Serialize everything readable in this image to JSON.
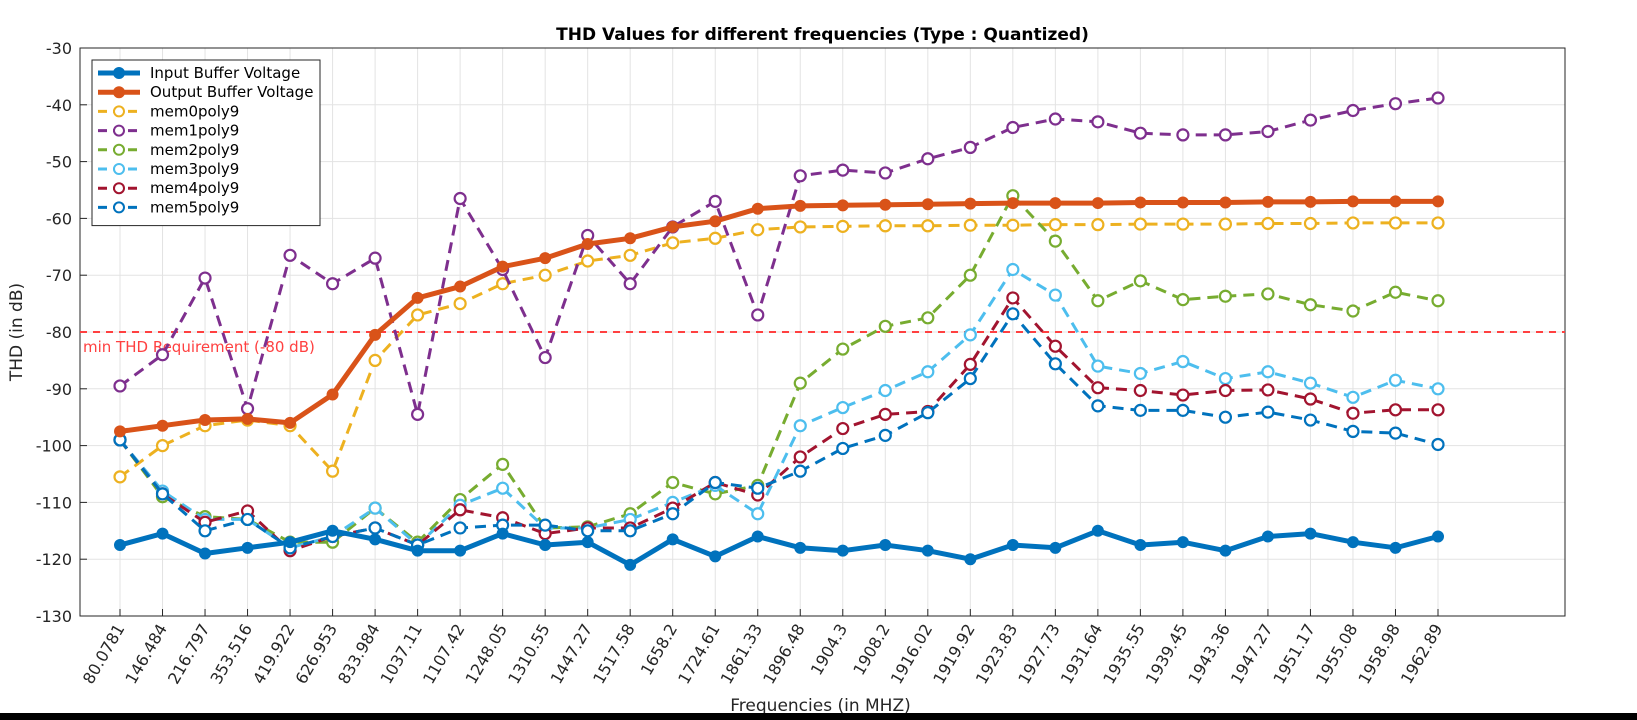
{
  "chart_data": {
    "type": "line",
    "title": "THD Values for different frequencies (Type : Quantized)",
    "xlabel": "Frequencies (in MHZ)",
    "ylabel": "THD (in dB)",
    "ylim": [
      -130,
      -30
    ],
    "yticks": [
      -130,
      -120,
      -110,
      -100,
      -90,
      -80,
      -70,
      -60,
      -50,
      -40,
      -30
    ],
    "grid": true,
    "legend_position": "top-left",
    "categories": [
      "80.0781",
      "146.484",
      "216.797",
      "353.516",
      "419.922",
      "626.953",
      "833.984",
      "1037.11",
      "1107.42",
      "1248.05",
      "1310.55",
      "1447.27",
      "1517.58",
      "1658.2",
      "1724.61",
      "1861.33",
      "1896.48",
      "1904.3",
      "1908.2",
      "1916.02",
      "1919.92",
      "1923.83",
      "1927.73",
      "1931.64",
      "1935.55",
      "1939.45",
      "1943.36",
      "1947.27",
      "1951.17",
      "1955.08",
      "1958.98",
      "1962.89"
    ],
    "threshold": {
      "value": -80,
      "label": "min THD Requirement (-80 dB)",
      "color": "#ff4040"
    },
    "series": [
      {
        "name": "Input Buffer Voltage",
        "color": "#0072bd",
        "style": "solid",
        "values": [
          -117.5,
          -115.5,
          -119,
          -118,
          -117,
          -115,
          -116.5,
          -118.5,
          -118.5,
          -115.5,
          -117.5,
          -117,
          -121,
          -116.5,
          -119.5,
          -116,
          -118,
          -118.5,
          -117.5,
          -118.5,
          -120,
          -117.5,
          -118,
          -115,
          -117.5,
          -117,
          -118.5,
          -116,
          -115.5,
          -117,
          -118,
          -116
        ]
      },
      {
        "name": "Output Buffer Voltage",
        "color": "#d95319",
        "style": "solid",
        "values": [
          -97.5,
          -96.5,
          -95.5,
          -95.3,
          -96,
          -91,
          -80.5,
          -74,
          -72,
          -68.5,
          -67,
          -64.5,
          -63.5,
          -61.5,
          -60.5,
          -58.3,
          -57.8,
          -57.7,
          -57.6,
          -57.5,
          -57.4,
          -57.3,
          -57.3,
          -57.3,
          -57.2,
          -57.2,
          -57.2,
          -57.1,
          -57.1,
          -57,
          -57,
          -57
        ]
      },
      {
        "name": "mem0poly9",
        "color": "#edb120",
        "style": "dashed",
        "values": [
          -105.5,
          -100,
          -96.5,
          -95.5,
          -96.5,
          -104.5,
          -85,
          -77,
          -75,
          -71.5,
          -70,
          -67.5,
          -66.5,
          -64.3,
          -63.5,
          -62,
          -61.5,
          -61.4,
          -61.3,
          -61.3,
          -61.2,
          -61.2,
          -61.1,
          -61.1,
          -61,
          -61,
          -61,
          -60.9,
          -60.9,
          -60.8,
          -60.8,
          -60.8
        ]
      },
      {
        "name": "mem1poly9",
        "color": "#7e2f8e",
        "style": "dashed",
        "values": [
          -89.5,
          -84,
          -70.5,
          -93.5,
          -66.5,
          -71.5,
          -67,
          -94.5,
          -56.5,
          -69,
          -84.5,
          -63,
          -71.5,
          -61.5,
          -57,
          -77,
          -52.5,
          -51.5,
          -52,
          -49.5,
          -47.5,
          -44,
          -42.5,
          -43,
          -45,
          -45.3,
          -45.3,
          -44.7,
          -42.7,
          -41,
          -39.8,
          -38.8
        ]
      },
      {
        "name": "mem2poly9",
        "color": "#77ac30",
        "style": "dashed",
        "values": [
          -99,
          -109,
          -112.5,
          -113,
          -117,
          -117,
          -111,
          -117,
          -109.5,
          -103.3,
          -114.5,
          -114.3,
          -112,
          -106.5,
          -108.5,
          -107,
          -89,
          -83,
          -79,
          -77.5,
          -70,
          -56,
          -64,
          -74.5,
          -71,
          -74.3,
          -73.7,
          -73.3,
          -75.2,
          -76.3,
          -73,
          -74.5
        ]
      },
      {
        "name": "mem3poly9",
        "color": "#4dbeee",
        "style": "dashed",
        "values": [
          -99,
          -108,
          -113,
          -113,
          -118,
          -116,
          -111,
          -117.5,
          -110.5,
          -107.5,
          -114.5,
          -114.5,
          -113,
          -110,
          -107,
          -112,
          -96.5,
          -93.3,
          -90.3,
          -87,
          -80.5,
          -69,
          -73.5,
          -86,
          -87.3,
          -85.2,
          -88.2,
          -87,
          -89,
          -91.5,
          -88.5,
          -90
        ]
      },
      {
        "name": "mem4poly9",
        "color": "#a2142f",
        "style": "dashed",
        "values": [
          -99,
          -108.5,
          -113.5,
          -111.5,
          -118.5,
          -116,
          -114.5,
          -117.5,
          -111.3,
          -112.7,
          -115.5,
          -114.5,
          -114.5,
          -111,
          -106.5,
          -108.7,
          -102,
          -97,
          -94.5,
          -94,
          -85.7,
          -74,
          -82.5,
          -89.8,
          -90.3,
          -91.1,
          -90.3,
          -90.2,
          -91.8,
          -94.3,
          -93.7,
          -93.7
        ]
      },
      {
        "name": "mem5poly9",
        "color": "#0072bd",
        "style": "dashed",
        "values": [
          -99,
          -108.5,
          -115,
          -113,
          -118,
          -116,
          -114.5,
          -117.5,
          -114.5,
          -114,
          -114,
          -115,
          -115,
          -112,
          -106.5,
          -107.5,
          -104.5,
          -100.5,
          -98.2,
          -94.2,
          -88.2,
          -76.8,
          -85.6,
          -93,
          -93.8,
          -93.8,
          -95,
          -94.1,
          -95.5,
          -97.5,
          -97.8,
          -99.8
        ]
      }
    ]
  }
}
